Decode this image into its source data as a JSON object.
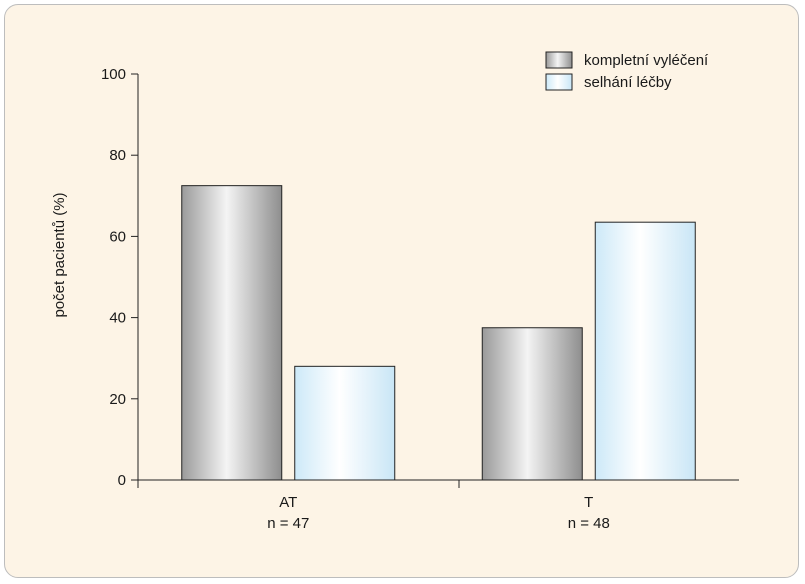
{
  "chart_data": {
    "type": "bar",
    "categories": [
      "AT",
      "T"
    ],
    "category_sublabels": [
      "n = 47",
      "n = 48"
    ],
    "series": [
      {
        "name": "kompletní vyléčení",
        "values": [
          72.5,
          37.5
        ]
      },
      {
        "name": "selhání léčby",
        "values": [
          28,
          63.5
        ]
      }
    ],
    "ylabel": "počet pacientů (%)",
    "xlabel": "",
    "ylim": [
      0,
      100
    ],
    "yticks": [
      "0",
      "20",
      "40",
      "60",
      "80",
      "100"
    ],
    "grid": false,
    "legend_position": "top-right"
  },
  "colors": {
    "background": "#fdf4e6",
    "series_1": "#c8c8c8",
    "series_2": "#dff1fb",
    "axis": "#222222"
  }
}
